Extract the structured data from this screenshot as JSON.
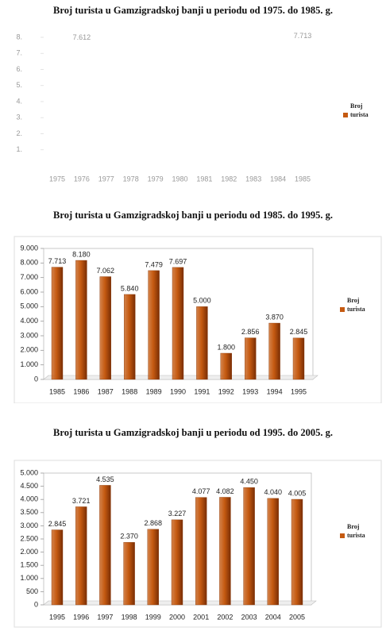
{
  "chart_data": [
    {
      "type": "bar",
      "title": "Broj turista u Gamzigradskoj banji u periodu od 1975. do 1985. g.",
      "categories": [
        "1975",
        "1976",
        "1977",
        "1978",
        "1979",
        "1980",
        "1981",
        "1982",
        "1983",
        "1984",
        "1985"
      ],
      "series": [
        {
          "name": "Broj turista",
          "color": "#c55a11",
          "values": [
            null,
            7612,
            null,
            null,
            null,
            null,
            null,
            null,
            null,
            null,
            7713
          ],
          "value_labels": [
            null,
            "7.612",
            null,
            null,
            null,
            null,
            null,
            null,
            null,
            null,
            "7.713"
          ]
        }
      ],
      "ylim": [
        0,
        8000
      ],
      "yticks": [
        {
          "value": 1000,
          "label": "1."
        },
        {
          "value": 2000,
          "label": "2."
        },
        {
          "value": 3000,
          "label": "3."
        },
        {
          "value": 4000,
          "label": "4."
        },
        {
          "value": 5000,
          "label": "5."
        },
        {
          "value": 6000,
          "label": "6."
        },
        {
          "value": 7000,
          "label": "7."
        },
        {
          "value": 8000,
          "label": "8."
        }
      ],
      "grid": false,
      "legend": "right"
    },
    {
      "type": "bar",
      "title": "Broj turista u Gamzigradskoj banji u periodu od 1985. do 1995. g.",
      "categories": [
        "1985",
        "1986",
        "1987",
        "1988",
        "1989",
        "1990",
        "1991",
        "1992",
        "1993",
        "1994",
        "1995"
      ],
      "series": [
        {
          "name": "Broj turista",
          "color": "#c55a11",
          "values": [
            7713,
            8180,
            7062,
            5840,
            7479,
            7697,
            5000,
            1800,
            2856,
            3870,
            2845
          ],
          "value_labels": [
            "7.713",
            "8.180",
            "7.062",
            "5.840",
            "7.479",
            "7.697",
            "5.000",
            "1.800",
            "2.856",
            "3.870",
            "2.845"
          ]
        }
      ],
      "ylim": [
        0,
        9000
      ],
      "yticks": [
        0,
        {
          "value": 1000,
          "label": "1.000"
        },
        {
          "value": 2000,
          "label": "2.000"
        },
        {
          "value": 3000,
          "label": "3.000"
        },
        {
          "value": 4000,
          "label": "4.000"
        },
        {
          "value": 5000,
          "label": "5.000"
        },
        {
          "value": 6000,
          "label": "6.000"
        },
        {
          "value": 7000,
          "label": "7.000"
        },
        {
          "value": 8000,
          "label": "8.000"
        },
        {
          "value": 9000,
          "label": "9.000"
        }
      ],
      "grid": false,
      "legend": "right"
    },
    {
      "type": "bar",
      "title": "Broj turista u Gamzigradskoj banji u periodu od 1995. do 2005. g.",
      "categories": [
        "1995",
        "1996",
        "1997",
        "1998",
        "1999",
        "2000",
        "2001",
        "2002",
        "2003",
        "2004",
        "2005"
      ],
      "series": [
        {
          "name": "Broj turista",
          "color": "#c55a11",
          "values": [
            2845,
            3721,
            4535,
            2370,
            2868,
            3227,
            4077,
            4082,
            4450,
            4040,
            4005
          ],
          "value_labels": [
            "2.845",
            "3.721",
            "4.535",
            "2.370",
            "2.868",
            "3.227",
            "4.077",
            "4.082",
            "4.450",
            "4.040",
            "4.005"
          ]
        }
      ],
      "ylim": [
        0,
        5000
      ],
      "yticks": [
        0,
        500,
        {
          "value": 1000,
          "label": "1.000"
        },
        {
          "value": 1500,
          "label": "1.500"
        },
        {
          "value": 2000,
          "label": "2.000"
        },
        {
          "value": 2500,
          "label": "2.500"
        },
        {
          "value": 3000,
          "label": "3.000"
        },
        {
          "value": 3500,
          "label": "3.500"
        },
        {
          "value": 4000,
          "label": "4.000"
        },
        {
          "value": 4500,
          "label": "4.500"
        },
        {
          "value": 5000,
          "label": "5.000"
        }
      ],
      "grid": false,
      "legend": "right"
    }
  ]
}
